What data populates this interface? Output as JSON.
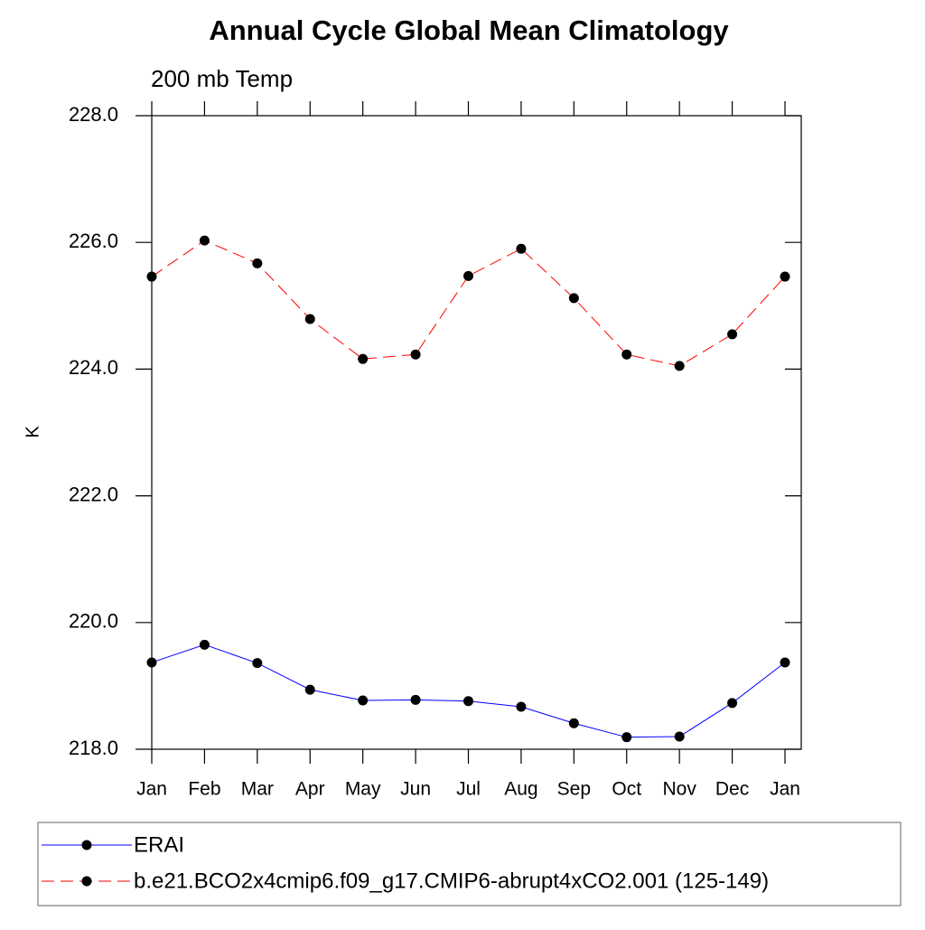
{
  "chart_data": {
    "type": "line",
    "title": "Annual Cycle Global Mean Climatology",
    "subtitle": "200 mb Temp",
    "y_label": "K",
    "categories": [
      "Jan",
      "Feb",
      "Mar",
      "Apr",
      "May",
      "Jun",
      "Jul",
      "Aug",
      "Sep",
      "Oct",
      "Nov",
      "Dec",
      "Jan"
    ],
    "series": [
      {
        "name": "ERAI",
        "color": "#0000ff",
        "dash": "solid",
        "values": [
          219.37,
          219.65,
          219.36,
          218.94,
          218.77,
          218.78,
          218.76,
          218.67,
          218.41,
          218.19,
          218.2,
          218.73,
          219.37
        ]
      },
      {
        "name": "b.e21.BCO2x4cmip6.f09_g17.CMIP6-abrupt4xCO2.001 (125-149)",
        "color": "#ff0000",
        "dash": "dashed",
        "values": [
          225.46,
          226.03,
          225.67,
          224.79,
          224.16,
          224.23,
          225.47,
          225.9,
          225.12,
          224.23,
          224.05,
          224.55,
          225.46
        ]
      }
    ],
    "ylim": [
      218,
      228
    ],
    "yticks": [
      {
        "value": 218,
        "label": "218.0"
      },
      {
        "value": 220,
        "label": "220.0"
      },
      {
        "value": 222,
        "label": "222.0"
      },
      {
        "value": 224,
        "label": "224.0"
      },
      {
        "value": 226,
        "label": "226.0"
      },
      {
        "value": 228,
        "label": "228.0"
      }
    ],
    "grid": false,
    "legend": "bottom"
  }
}
